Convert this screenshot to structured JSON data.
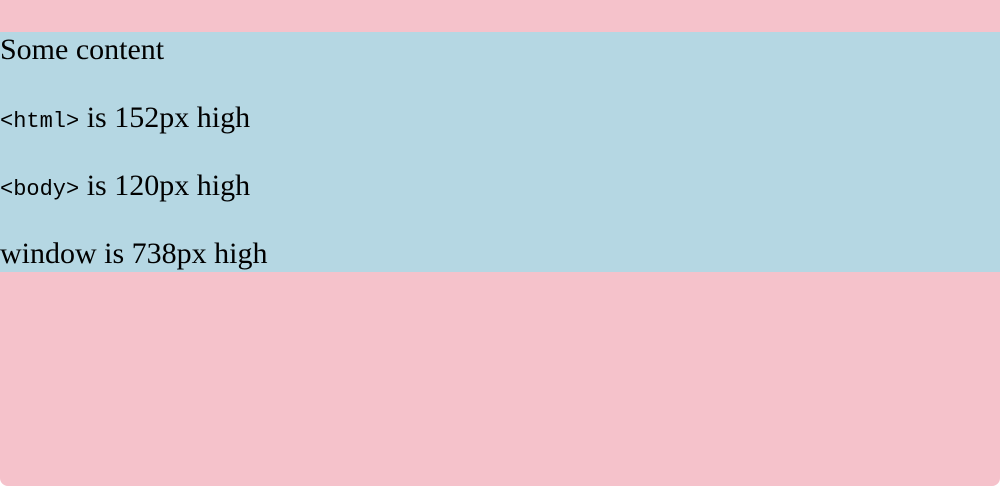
{
  "content": {
    "line1": "Some content",
    "html_tag": "<html>",
    "html_height_text": " is 152px high",
    "body_tag": "<body>",
    "body_height_text": " is 120px high",
    "window_text": "window is 738px high"
  },
  "colors": {
    "page_background": "#f5c2cb",
    "content_background": "#b5d7e3"
  }
}
